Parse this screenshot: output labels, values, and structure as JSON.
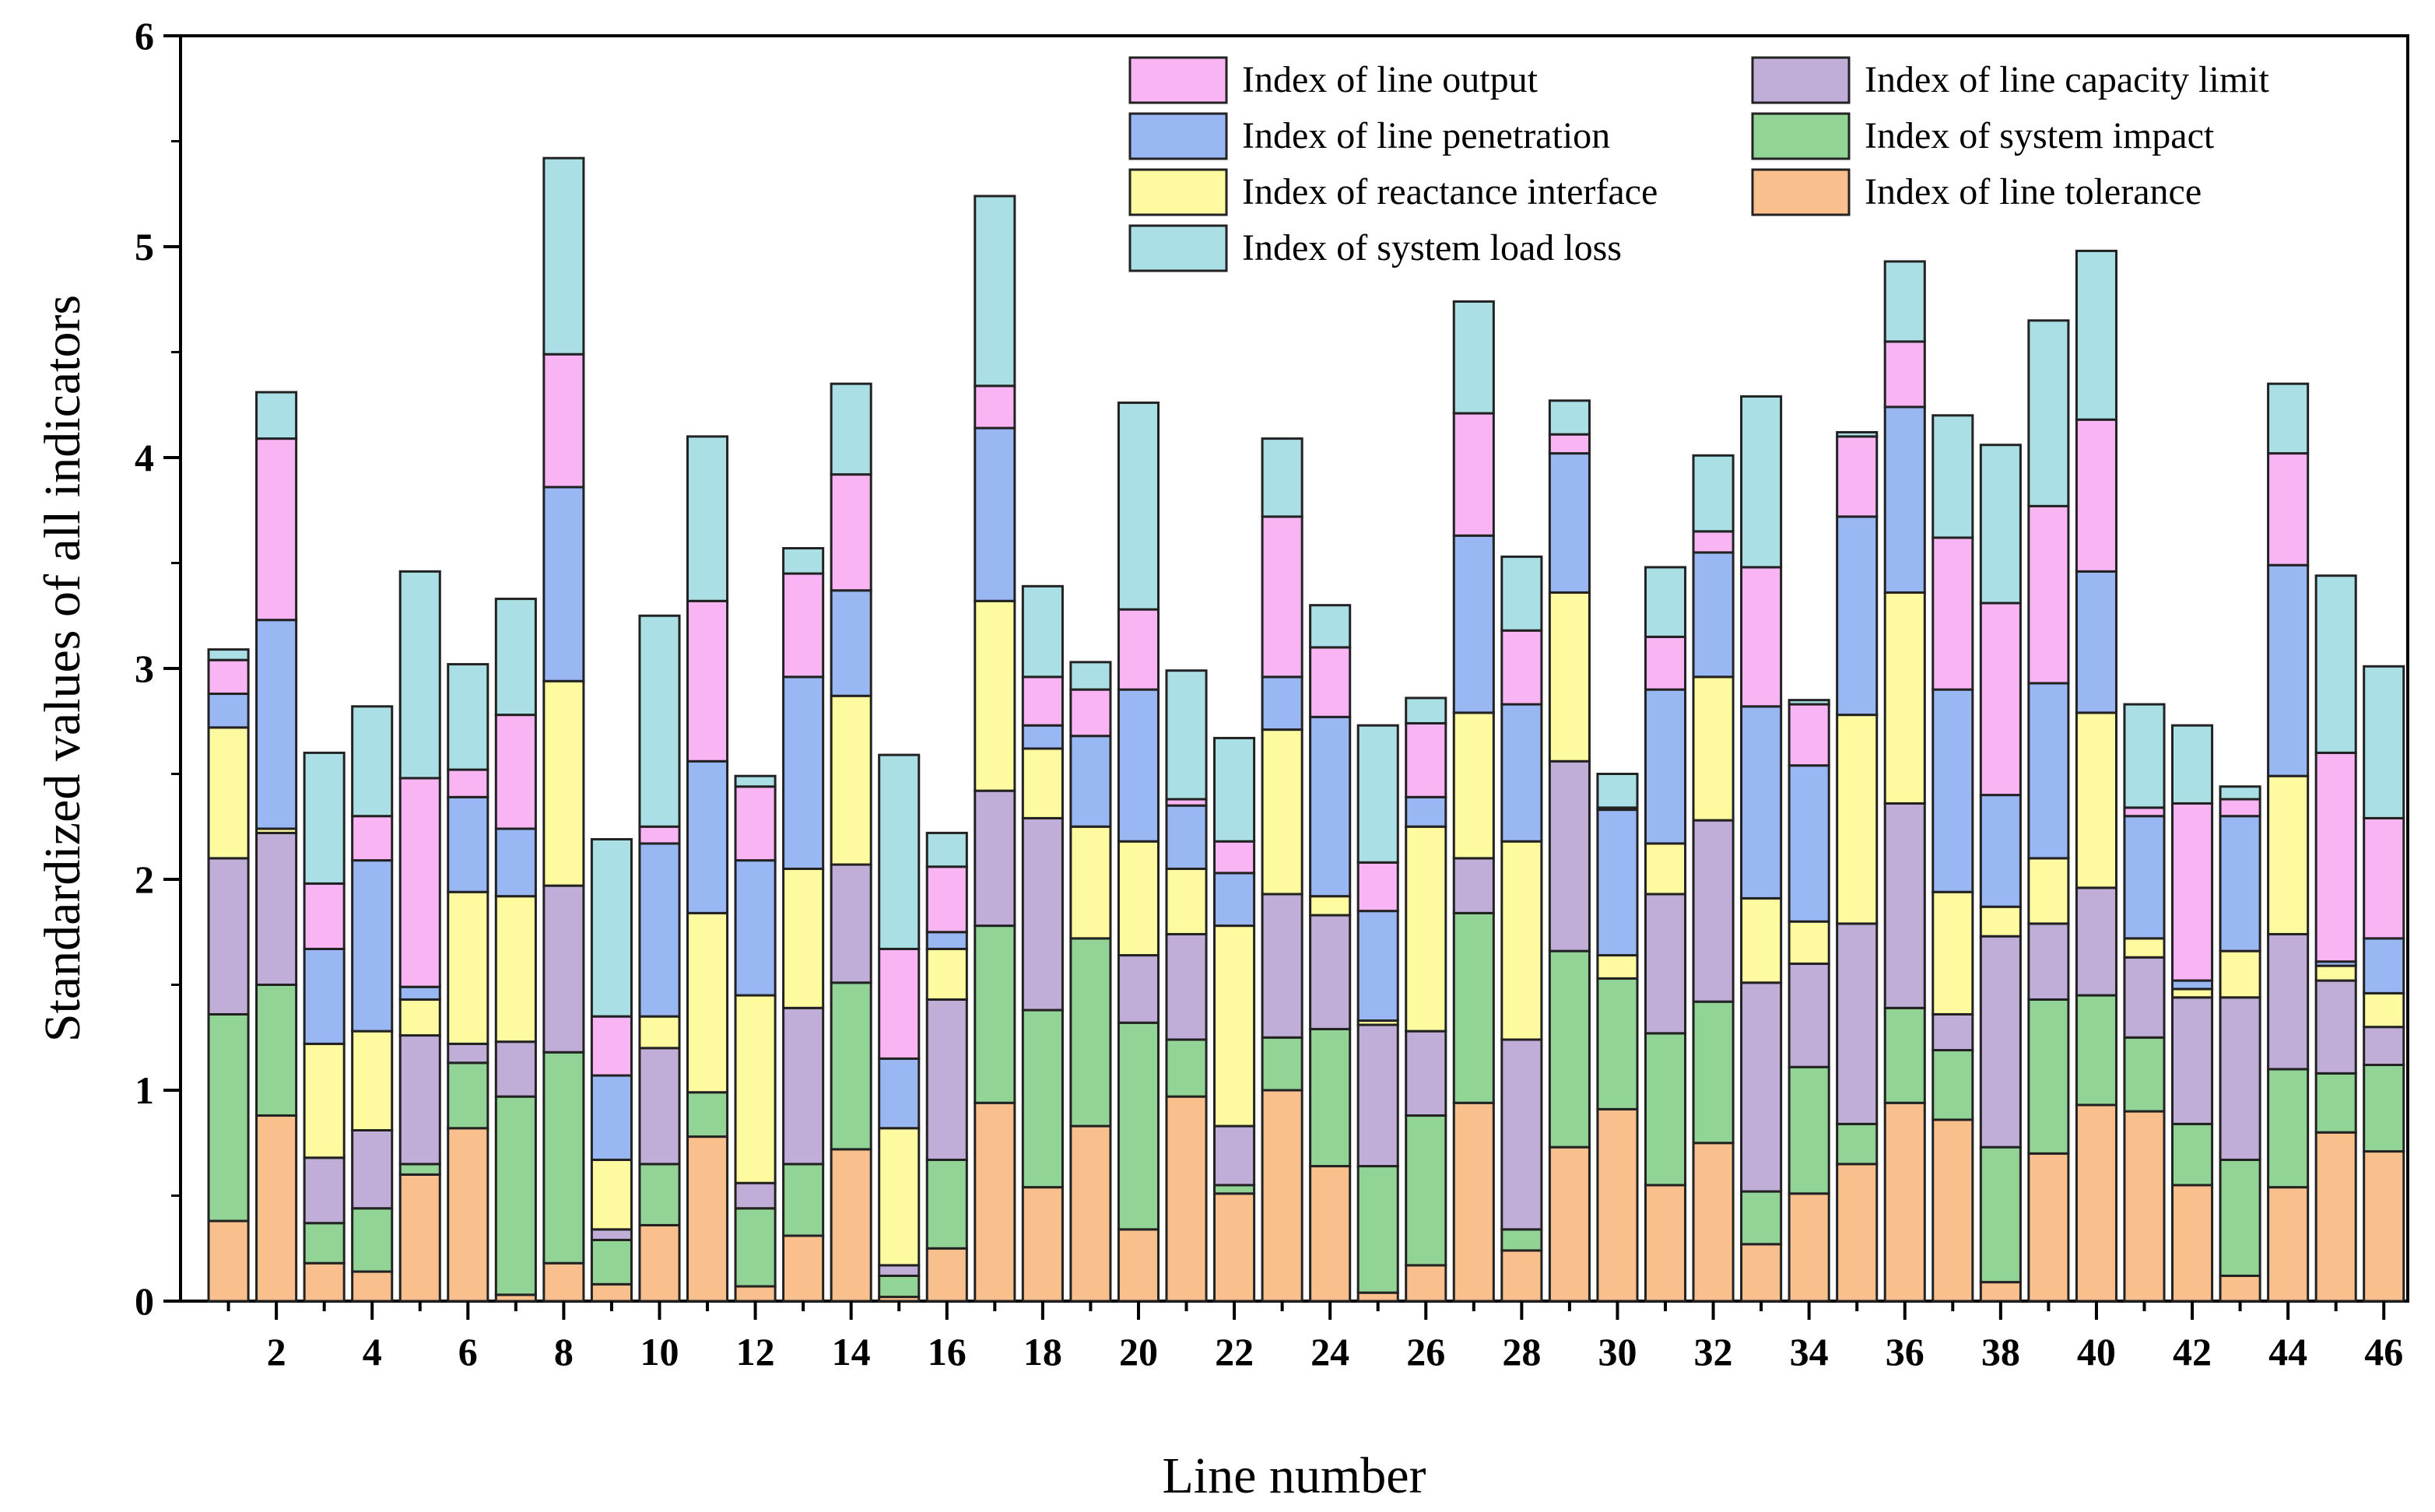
{
  "chart_data": {
    "type": "bar",
    "stacked": true,
    "xlabel": "Line number",
    "ylabel": "Standardized values of all indicators",
    "ylim": [
      0,
      6
    ],
    "yticks": [
      0,
      1,
      2,
      3,
      4,
      5,
      6
    ],
    "categories": [
      1,
      2,
      3,
      4,
      5,
      6,
      7,
      8,
      9,
      10,
      11,
      12,
      13,
      14,
      15,
      16,
      17,
      18,
      19,
      20,
      21,
      22,
      23,
      24,
      25,
      26,
      27,
      28,
      29,
      30,
      31,
      32,
      33,
      34,
      35,
      36,
      37,
      38,
      39,
      40,
      41,
      42,
      43,
      44,
      45,
      46
    ],
    "xtick_labels": [
      "2",
      "4",
      "6",
      "8",
      "10",
      "12",
      "14",
      "16",
      "18",
      "20",
      "22",
      "24",
      "26",
      "28",
      "30",
      "32",
      "34",
      "36",
      "38",
      "40",
      "42",
      "44",
      "46"
    ],
    "legend_position": "top-right",
    "series": [
      {
        "name": "Index of line tolerance",
        "color": "#f9c08e",
        "values": [
          0.38,
          0.88,
          0.18,
          0.14,
          0.6,
          0.82,
          0.03,
          0.18,
          0.08,
          0.36,
          0.78,
          0.07,
          0.31,
          0.72,
          0.02,
          0.25,
          0.94,
          0.54,
          0.83,
          0.34,
          0.97,
          0.51,
          1.0,
          0.64,
          0.04,
          0.17,
          0.94,
          0.24,
          0.73,
          0.91,
          0.55,
          0.75,
          0.27,
          0.51,
          0.65,
          0.94,
          0.86,
          0.09,
          0.7,
          0.93,
          0.9,
          0.55,
          0.12,
          0.54,
          0.8,
          0.71
        ]
      },
      {
        "name": "Index of system impact",
        "color": "#92d396",
        "values": [
          0.98,
          0.62,
          0.19,
          0.3,
          0.05,
          0.31,
          0.94,
          1.0,
          0.21,
          0.29,
          0.21,
          0.37,
          0.34,
          0.79,
          0.1,
          0.42,
          0.84,
          0.84,
          0.89,
          0.98,
          0.27,
          0.04,
          0.25,
          0.65,
          0.6,
          0.71,
          0.9,
          0.1,
          0.93,
          0.62,
          0.72,
          0.67,
          0.25,
          0.6,
          0.19,
          0.45,
          0.33,
          0.64,
          0.73,
          0.52,
          0.35,
          0.29,
          0.55,
          0.56,
          0.28,
          0.41
        ]
      },
      {
        "name": "Index of line capacity limit",
        "color": "#c1aed8",
        "values": [
          0.74,
          0.72,
          0.31,
          0.37,
          0.61,
          0.09,
          0.26,
          0.79,
          0.05,
          0.55,
          0.0,
          0.12,
          0.74,
          0.56,
          0.05,
          0.76,
          0.64,
          0.91,
          0.0,
          0.32,
          0.5,
          0.28,
          0.68,
          0.54,
          0.67,
          0.4,
          0.26,
          0.9,
          0.9,
          0.0,
          0.66,
          0.86,
          0.99,
          0.49,
          0.95,
          0.97,
          0.17,
          1.0,
          0.36,
          0.51,
          0.38,
          0.6,
          0.77,
          0.64,
          0.44,
          0.18
        ]
      },
      {
        "name": "Index of reactance interface",
        "color": "#fdfaa0",
        "values": [
          0.62,
          0.02,
          0.54,
          0.47,
          0.17,
          0.72,
          0.69,
          0.97,
          0.33,
          0.15,
          0.85,
          0.89,
          0.66,
          0.8,
          0.65,
          0.24,
          0.9,
          0.33,
          0.53,
          0.54,
          0.31,
          0.95,
          0.78,
          0.09,
          0.02,
          0.97,
          0.69,
          0.94,
          0.8,
          0.11,
          0.24,
          0.68,
          0.4,
          0.2,
          0.99,
          1.0,
          0.58,
          0.14,
          0.31,
          0.83,
          0.09,
          0.04,
          0.22,
          0.75,
          0.07,
          0.16
        ]
      },
      {
        "name": "Index of line penetration",
        "color": "#99b7f2",
        "values": [
          0.16,
          0.99,
          0.45,
          0.81,
          0.06,
          0.45,
          0.32,
          0.92,
          0.4,
          0.82,
          0.72,
          0.64,
          0.91,
          0.5,
          0.33,
          0.08,
          0.82,
          0.11,
          0.43,
          0.72,
          0.3,
          0.25,
          0.25,
          0.85,
          0.52,
          0.14,
          0.84,
          0.65,
          0.66,
          0.69,
          0.73,
          0.59,
          0.91,
          0.74,
          0.94,
          0.88,
          0.96,
          0.53,
          0.83,
          0.67,
          0.58,
          0.04,
          0.64,
          1.0,
          0.02,
          0.26
        ]
      },
      {
        "name": "Index of line output",
        "color": "#f9b5f3",
        "values": [
          0.16,
          0.86,
          0.31,
          0.21,
          0.99,
          0.13,
          0.54,
          0.63,
          0.28,
          0.08,
          0.76,
          0.35,
          0.49,
          0.55,
          0.52,
          0.31,
          0.2,
          0.23,
          0.22,
          0.38,
          0.03,
          0.15,
          0.76,
          0.33,
          0.23,
          0.35,
          0.58,
          0.35,
          0.09,
          0.01,
          0.25,
          0.1,
          0.66,
          0.29,
          0.38,
          0.31,
          0.72,
          0.91,
          0.84,
          0.72,
          0.04,
          0.84,
          0.08,
          0.53,
          0.99,
          0.57
        ]
      },
      {
        "name": "Index of system load loss",
        "color": "#abdfe6",
        "values": [
          0.05,
          0.22,
          0.62,
          0.52,
          0.98,
          0.5,
          0.55,
          0.93,
          0.84,
          1.0,
          0.78,
          0.05,
          0.12,
          0.43,
          0.92,
          0.16,
          0.9,
          0.43,
          0.13,
          0.98,
          0.61,
          0.49,
          0.37,
          0.2,
          0.65,
          0.12,
          0.53,
          0.35,
          0.16,
          0.16,
          0.33,
          0.36,
          0.81,
          0.02,
          0.02,
          0.38,
          0.58,
          0.75,
          0.88,
          0.8,
          0.49,
          0.37,
          0.06,
          0.33,
          0.84,
          0.72
        ]
      }
    ]
  }
}
